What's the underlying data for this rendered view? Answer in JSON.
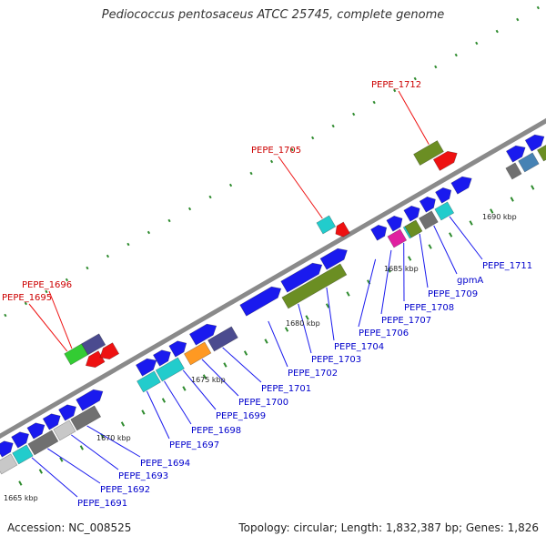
{
  "title": "Pediococcus pentosaceus ATCC 25745, complete genome",
  "footer": {
    "accession": "Accession: NC_008525",
    "summary": "Topology: circular; Length: 1,832,387 bp; Genes: 1,826"
  },
  "ticks": [
    "1665 kbp",
    "1670 kbp",
    "1675 kbp",
    "1680 kbp",
    "1685 kbp",
    "1690 kbp"
  ],
  "labels": [
    {
      "text": "PEPE_1696",
      "color": "red"
    },
    {
      "text": "PEPE_1695",
      "color": "red"
    },
    {
      "text": "PEPE_1705",
      "color": "red"
    },
    {
      "text": "PEPE_1712",
      "color": "red"
    },
    {
      "text": "PEPE_1691",
      "color": "blue"
    },
    {
      "text": "PEPE_1692",
      "color": "blue"
    },
    {
      "text": "PEPE_1693",
      "color": "blue"
    },
    {
      "text": "PEPE_1694",
      "color": "blue"
    },
    {
      "text": "PEPE_1697",
      "color": "blue"
    },
    {
      "text": "PEPE_1698",
      "color": "blue"
    },
    {
      "text": "PEPE_1699",
      "color": "blue"
    },
    {
      "text": "PEPE_1700",
      "color": "blue"
    },
    {
      "text": "PEPE_1701",
      "color": "blue"
    },
    {
      "text": "PEPE_1702",
      "color": "blue"
    },
    {
      "text": "PEPE_1703",
      "color": "blue"
    },
    {
      "text": "PEPE_1704",
      "color": "blue"
    },
    {
      "text": "PEPE_1706",
      "color": "blue"
    },
    {
      "text": "PEPE_1707",
      "color": "blue"
    },
    {
      "text": "PEPE_1708",
      "color": "blue"
    },
    {
      "text": "PEPE_1709",
      "color": "blue"
    },
    {
      "text": "gpmA",
      "color": "blue"
    },
    {
      "text": "PEPE_1711",
      "color": "blue"
    }
  ],
  "colors": {
    "backbone": "#8a8a8a",
    "blue": "#1a1aee",
    "red": "#ee1111",
    "cyan": "#22cccc",
    "olive": "#6b8e23",
    "slate": "#4b4b8f",
    "gray": "#707070",
    "light_gray": "#c8c8c8",
    "orange": "#ff9922",
    "magenta": "#e020a0",
    "steel": "#4682b4",
    "green": "#33cc33",
    "tick": "#2e8b2e"
  }
}
